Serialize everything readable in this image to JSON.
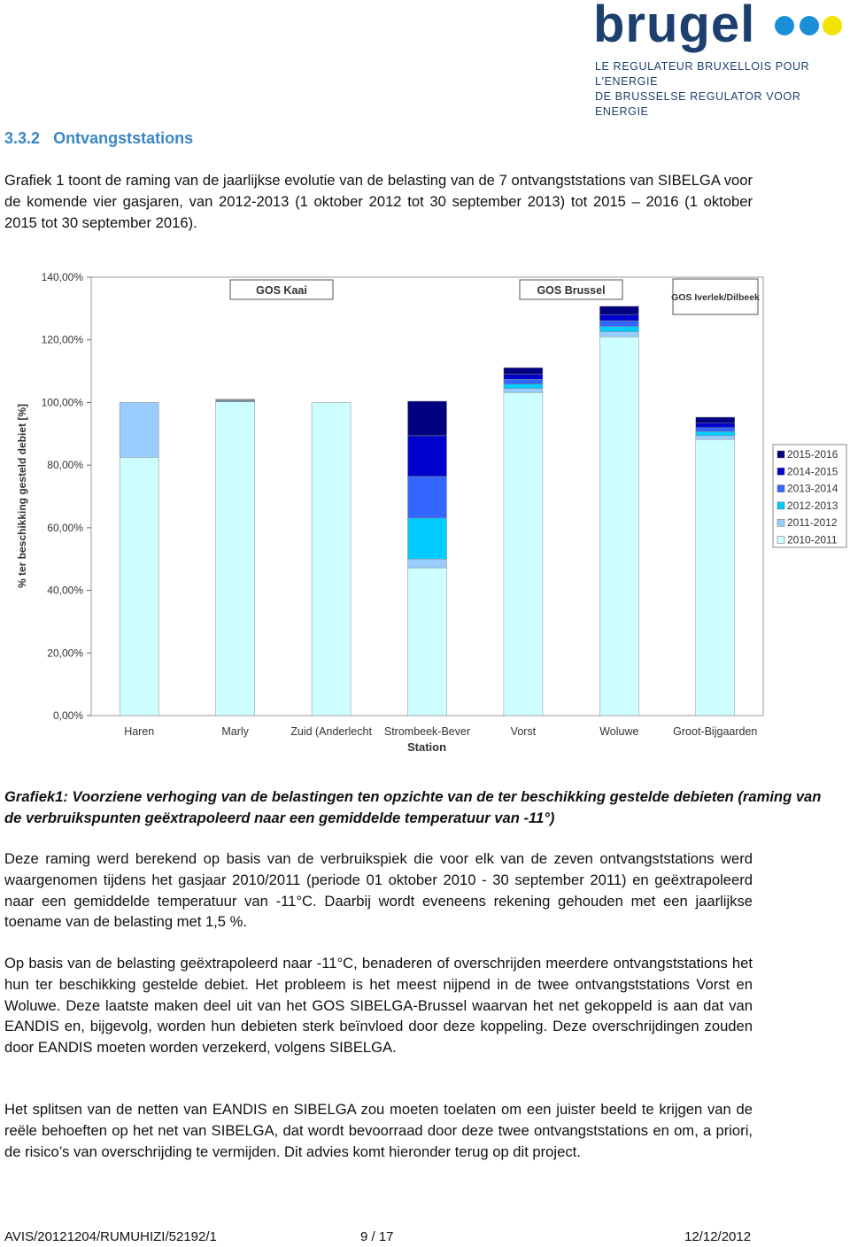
{
  "header": {
    "logo": "brugel",
    "tagline": [
      "LE REGULATEUR BRUXELLOIS POUR L'ENERGIE",
      "DE BRUSSELSE REGULATOR VOOR ENERGIE"
    ]
  },
  "section": {
    "number": "3.3.2",
    "title": "Ontvangststations"
  },
  "intro": "Grafiek 1 toont de raming van de jaarlijkse evolutie van de belasting van de 7 ontvangststations van SIBELGA voor de komende vier gasjaren, van 2012-2013 (1 oktober 2012 tot 30 september 2013) tot 2015 – 2016 (1 oktober 2015 tot 30 september 2016).",
  "chart_data": {
    "type": "stacked-bar",
    "x_label": "Station",
    "y_label": "% ter beschikking gesteld debiet [%]",
    "categories": [
      "Haren",
      "Marly",
      "Zuid (Anderlecht",
      "Strombeek-Bever",
      "Vorst",
      "Woluwe",
      "Groot-Bijgaarden"
    ],
    "series": [
      {
        "name": "2010-2011",
        "color": "#ccffff",
        "values": [
          82.5,
          100.2,
          100,
          47.2,
          103.2,
          121.0,
          88.2
        ]
      },
      {
        "name": "2011-2012",
        "color": "#99ccff",
        "values": [
          17.5,
          0.2,
          0,
          2.8,
          1.3,
          1.6,
          1.2
        ]
      },
      {
        "name": "2012-2013",
        "color": "#00ccff",
        "values": [
          0,
          0.2,
          0,
          13.1,
          1.4,
          1.7,
          1.3
        ]
      },
      {
        "name": "2013-2014",
        "color": "#3366ff",
        "values": [
          0,
          0.2,
          0,
          13.3,
          1.5,
          1.8,
          1.3
        ]
      },
      {
        "name": "2014-2015",
        "color": "#0000cc",
        "values": [
          0,
          0.1,
          0,
          13.0,
          1.6,
          2.0,
          1.4
        ]
      },
      {
        "name": "2015-2016",
        "color": "#000080",
        "values": [
          0,
          0.1,
          0,
          11.0,
          2.1,
          2.6,
          1.9
        ]
      }
    ],
    "ylim": [
      0,
      140
    ],
    "yticks": [
      {
        "value": 0,
        "label": "0,00%"
      },
      {
        "value": 20,
        "label": "20,00%"
      },
      {
        "value": 40,
        "label": "40,00%"
      },
      {
        "value": 60,
        "label": "60,00%"
      },
      {
        "value": 80,
        "label": "80,00%"
      },
      {
        "value": 100,
        "label": "100,00%"
      },
      {
        "value": 120,
        "label": "120,00%"
      },
      {
        "value": 140,
        "label": "140,00%"
      }
    ],
    "grid": false,
    "legend": "right",
    "annotations": [
      "GOS Kaai",
      "GOS Brussel",
      "GOS Iverlek/Dilbeek"
    ]
  },
  "caption": "Grafiek1: Voorziene verhoging van de belastingen ten opzichte van de ter beschikking gestelde debieten (raming van de verbruikspunten geëxtrapoleerd naar een gemiddelde temperatuur van -11°)",
  "paragraphs": [
    "Deze raming werd berekend op basis van de verbruikspiek die voor elk van de zeven ontvangststations werd waargenomen tijdens het gasjaar 2010/2011 (periode 01 oktober 2010 - 30 september 2011) en geëxtrapoleerd naar een gemiddelde temperatuur van -11°C. Daarbij wordt eveneens rekening gehouden met een jaarlijkse toename van de belasting met 1,5 %.",
    "Op basis van de belasting geëxtrapoleerd naar -11°C, benaderen of overschrijden meerdere ontvangststations het hun ter beschikking gestelde debiet. Het probleem is het meest nijpend in de twee ontvangststations Vorst en Woluwe. Deze laatste maken deel uit van het GOS SIBELGA-Brussel waarvan het net gekoppeld is aan dat van EANDIS en, bijgevolg, worden hun debieten sterk beïnvloed door deze koppeling. Deze overschrijdingen zouden door EANDIS moeten worden verzekerd, volgens SIBELGA.",
    "Het splitsen van de netten van EANDIS en SIBELGA zou moeten toelaten om een juister beeld te krijgen van de reële behoeften op het net van SIBELGA, dat wordt bevoorraad door deze twee ontvangststations en om, a priori, de risico’s van overschrijding te vermijden. Dit advies komt hieronder terug op dit project."
  ],
  "footer": {
    "reference": "AVIS/20121204/RUMUHIZI/52192/1",
    "page": "9 / 17",
    "date": "12/12/2012"
  }
}
